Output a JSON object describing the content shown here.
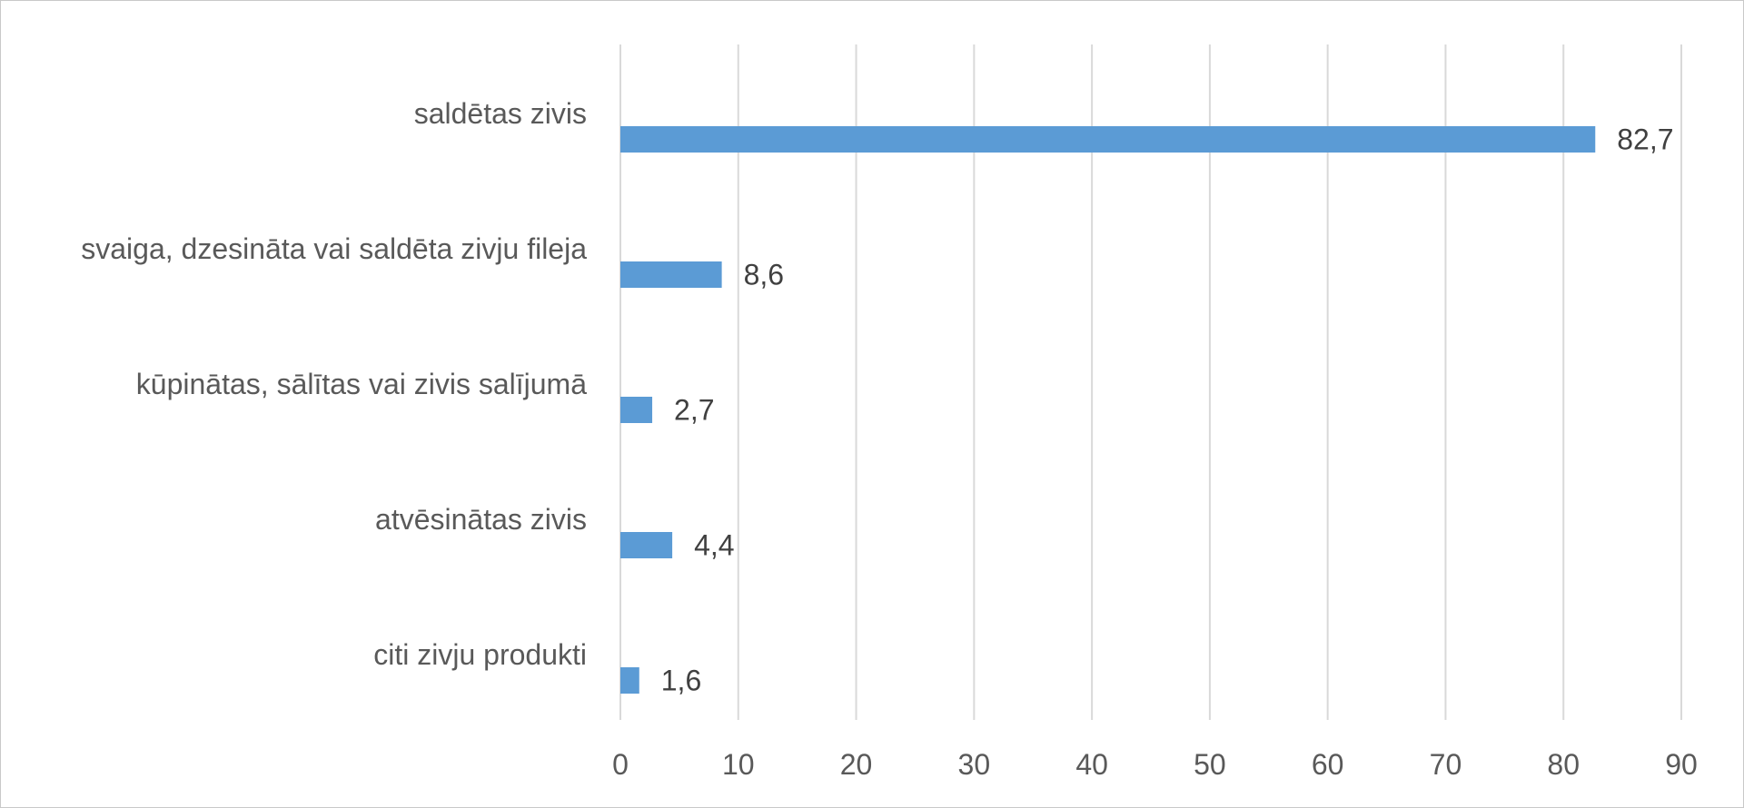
{
  "chart_data": {
    "type": "bar",
    "orientation": "horizontal",
    "categories": [
      "saldētas zivis",
      "svaiga, dzesināta vai saldēta zivju fileja",
      "kūpinātas, sālītas vai zivis salījumā",
      "atvēsinātas zivis",
      "citi zivju produkti"
    ],
    "values": [
      82.7,
      8.6,
      2.7,
      4.4,
      1.6
    ],
    "data_labels": [
      "82,7",
      "8,6",
      "2,7",
      "4,4",
      "1,6"
    ],
    "xlim": [
      0,
      90
    ],
    "xticks": [
      0,
      10,
      20,
      30,
      40,
      50,
      60,
      70,
      80,
      90
    ],
    "grid": true,
    "legend": "none",
    "title": "",
    "xlabel": "",
    "ylabel": "",
    "colors": {
      "bar": "#5b9bd5",
      "grid": "#d9d9d9",
      "axis_text": "#595959",
      "data_label_text": "#404040"
    }
  }
}
